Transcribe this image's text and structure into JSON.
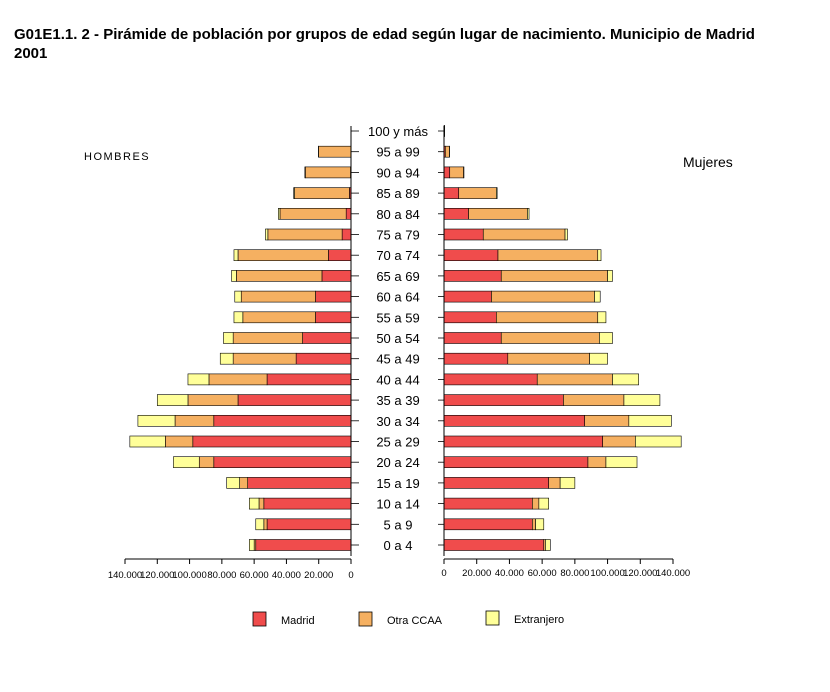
{
  "title": "G01E1.1. 2 - Pirámide de población por grupos de edad según lugar de nacimiento. Municipio de Madrid",
  "subtitle": "2001",
  "chart_data": {
    "type": "bar",
    "orientation": "horizontal",
    "layout": "population-pyramid",
    "stacked": true,
    "left_label": "HOMBRES",
    "right_label": "Mujeres",
    "categories": [
      "0 a 4",
      "5 a 9",
      "10 a 14",
      "15 a 19",
      "20 a 24",
      "25 a 29",
      "30 a 34",
      "35 a 39",
      "40 a 44",
      "45 a 49",
      "50 a 54",
      "55 a 59",
      "60 a 64",
      "65 a 69",
      "70 a 74",
      "75 a 79",
      "80 a 84",
      "85 a 89",
      "90 a 94",
      "95 a 99",
      "100 y más"
    ],
    "xlim": [
      0,
      140000
    ],
    "ticks": [
      0,
      20000,
      40000,
      60000,
      80000,
      100000,
      120000,
      140000
    ],
    "left_tick_labels": [
      "0",
      "20.000",
      "40.000",
      "60.000",
      "80.000",
      "100.000",
      "120.000",
      "140.000"
    ],
    "right_tick_labels": [
      "0",
      "20.000",
      "40.000",
      "60.000",
      "80.000",
      "100.000",
      "120.000",
      "140.000"
    ],
    "colors": {
      "Madrid": "#f04c4c",
      "Otra CCAA": "#f5b061",
      "Extranjero": "#ffff99",
      "edge": "#000000"
    },
    "hombres": [
      {
        "name": "Madrid",
        "values": [
          59000,
          52000,
          54000,
          64000,
          85000,
          98000,
          85000,
          70000,
          52000,
          34000,
          30000,
          22000,
          22000,
          18000,
          14000,
          5500,
          3000,
          1000,
          300,
          100,
          0
        ]
      },
      {
        "name": "Otra CCAA",
        "values": [
          1000,
          2000,
          3000,
          5000,
          9000,
          17000,
          24000,
          31000,
          36000,
          39000,
          43000,
          45000,
          46000,
          53000,
          56000,
          46000,
          41000,
          34000,
          28000,
          20000,
          0
        ]
      },
      {
        "name": "Extranjero",
        "values": [
          3000,
          5000,
          6000,
          8000,
          16000,
          22000,
          23000,
          19000,
          13000,
          8000,
          6000,
          5500,
          4000,
          3000,
          2500,
          1500,
          1000,
          500,
          300,
          100,
          0
        ]
      }
    ],
    "mujeres": [
      {
        "name": "Madrid",
        "values": [
          61000,
          54000,
          54000,
          64000,
          88000,
          97000,
          86000,
          73000,
          57000,
          39000,
          35000,
          32000,
          29000,
          35000,
          33000,
          24000,
          15000,
          9000,
          3500,
          800,
          200
        ]
      },
      {
        "name": "Otra CCAA",
        "values": [
          1000,
          2000,
          4000,
          7000,
          11000,
          20000,
          27000,
          37000,
          46000,
          50000,
          60000,
          62000,
          63000,
          65000,
          61000,
          50000,
          36000,
          23000,
          8500,
          2500,
          200
        ]
      },
      {
        "name": "Extranjero",
        "values": [
          3000,
          5000,
          6000,
          9000,
          19000,
          28000,
          26000,
          22000,
          16000,
          11000,
          8000,
          5000,
          3500,
          3000,
          2000,
          1500,
          1000,
          500,
          200,
          100,
          0
        ]
      }
    ],
    "legend": [
      "Madrid",
      "Otra CCAA",
      "Extranjero"
    ],
    "legend_position": "bottom"
  }
}
